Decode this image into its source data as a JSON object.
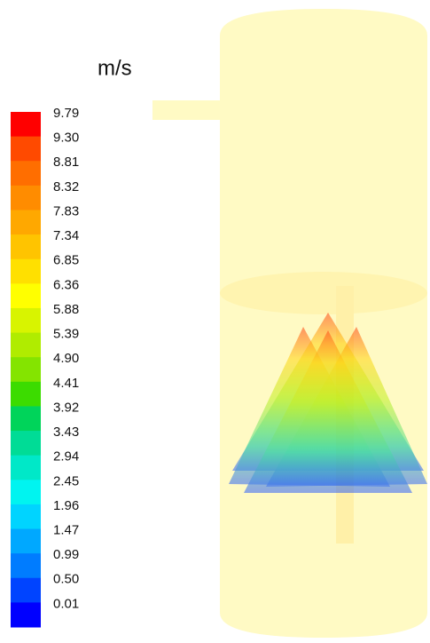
{
  "colorbar": {
    "unit": "m/s",
    "labels": [
      "9.79",
      "9.30",
      "8.81",
      "8.32",
      "7.83",
      "7.34",
      "6.85",
      "6.36",
      "5.88",
      "5.39",
      "4.90",
      "4.41",
      "3.92",
      "3.43",
      "2.94",
      "2.45",
      "1.96",
      "1.47",
      "0.99",
      "0.50",
      "0.01"
    ],
    "colors": [
      "#ff0000",
      "#ff4a00",
      "#ff6e00",
      "#ff8c00",
      "#ffa800",
      "#ffc400",
      "#ffe000",
      "#ffff00",
      "#d8f400",
      "#b0ec00",
      "#84e400",
      "#3cdc00",
      "#00d45a",
      "#00dc96",
      "#00e8c8",
      "#00f4f0",
      "#00d4ff",
      "#00a8ff",
      "#007cff",
      "#0044ff",
      "#0000ff"
    ]
  }
}
